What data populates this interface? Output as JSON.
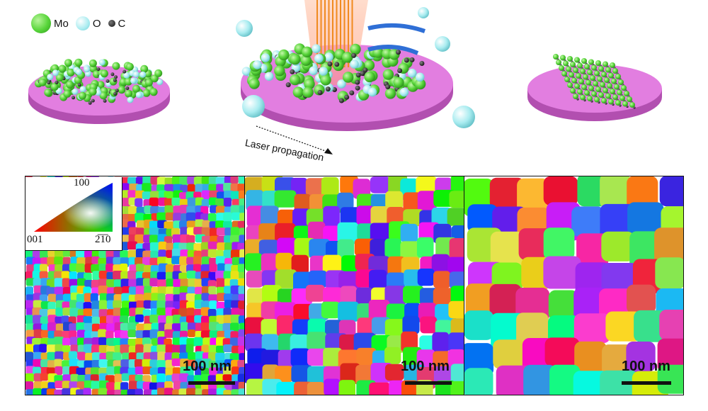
{
  "legend": {
    "items": [
      {
        "label": "Mo",
        "color": "#58d53a"
      },
      {
        "label": "O",
        "color": "#a9ecf0"
      },
      {
        "label": "C",
        "color": "#111111"
      }
    ]
  },
  "schematic": {
    "laser_label": "Laser propagation"
  },
  "ipf_key": {
    "corner_top": "100",
    "corner_left": "001",
    "corner_right": "2̅1̅0"
  },
  "panels": [
    {
      "scale_label": "100 nm"
    },
    {
      "scale_label": "100 nm"
    },
    {
      "scale_label": "100 nm"
    }
  ]
}
